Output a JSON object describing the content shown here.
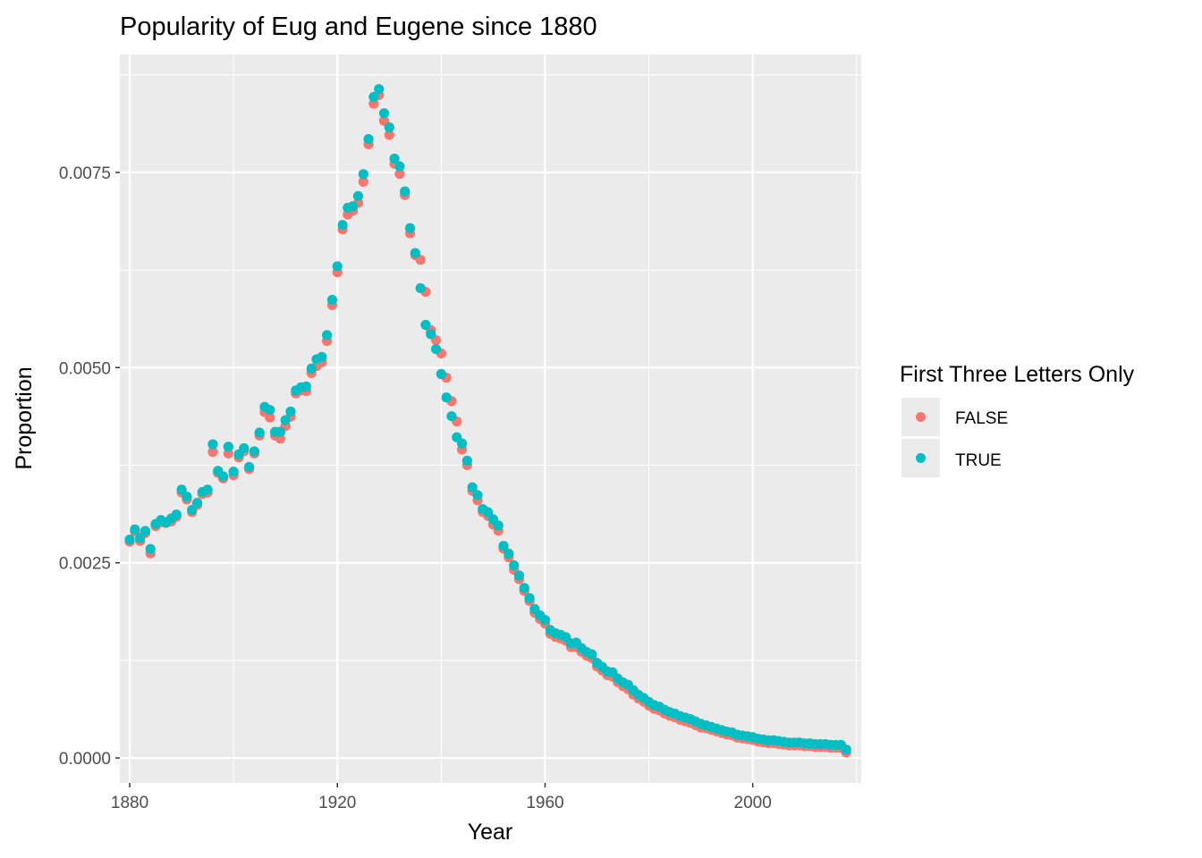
{
  "chart_data": {
    "type": "scatter",
    "title": "Popularity of Eug and Eugene since 1880",
    "xlabel": "Year",
    "ylabel": "Proportion",
    "xlim": [
      1878.1,
      2020.9
    ],
    "ylim": [
      -0.00032,
      0.00901
    ],
    "x_ticks": [
      1880,
      1920,
      1960,
      2000
    ],
    "x_tick_labels": [
      "1880",
      "1920",
      "1960",
      "2000"
    ],
    "x_minor": [
      1900,
      1940,
      1980,
      2020
    ],
    "y_ticks": [
      0,
      0.0025,
      0.005,
      0.0075
    ],
    "y_tick_labels": [
      "0.0000",
      "0.0025",
      "0.0050",
      "0.0075"
    ],
    "y_minor": [
      0.00125,
      0.00375,
      0.00625,
      0.00875
    ],
    "grid": true,
    "legend": {
      "title": "First Three Letters Only",
      "position": "right"
    },
    "x": [
      1880,
      1881,
      1882,
      1883,
      1884,
      1885,
      1886,
      1887,
      1888,
      1889,
      1890,
      1891,
      1892,
      1893,
      1894,
      1895,
      1896,
      1897,
      1898,
      1899,
      1900,
      1901,
      1902,
      1903,
      1904,
      1905,
      1906,
      1907,
      1908,
      1909,
      1910,
      1911,
      1912,
      1913,
      1914,
      1915,
      1916,
      1917,
      1918,
      1919,
      1920,
      1921,
      1922,
      1923,
      1924,
      1925,
      1926,
      1927,
      1928,
      1929,
      1930,
      1931,
      1932,
      1933,
      1934,
      1935,
      1936,
      1937,
      1938,
      1939,
      1940,
      1941,
      1942,
      1943,
      1944,
      1945,
      1946,
      1947,
      1948,
      1949,
      1950,
      1951,
      1952,
      1953,
      1954,
      1955,
      1956,
      1957,
      1958,
      1959,
      1960,
      1961,
      1962,
      1963,
      1964,
      1965,
      1966,
      1967,
      1968,
      1969,
      1970,
      1971,
      1972,
      1973,
      1974,
      1975,
      1976,
      1977,
      1978,
      1979,
      1980,
      1981,
      1982,
      1983,
      1984,
      1985,
      1986,
      1987,
      1988,
      1989,
      1990,
      1991,
      1992,
      1993,
      1994,
      1995,
      1996,
      1997,
      1998,
      1999,
      2000,
      2001,
      2002,
      2003,
      2004,
      2005,
      2006,
      2007,
      2008,
      2009,
      2010,
      2011,
      2012,
      2013,
      2014,
      2015,
      2016,
      2017,
      2018
    ],
    "series": [
      {
        "name": "FALSE",
        "color": "#F8766D",
        "values": [
          0.00277,
          0.0029,
          0.00278,
          0.00288,
          0.00262,
          0.00297,
          0.00302,
          0.00301,
          0.00303,
          0.00309,
          0.0034,
          0.00331,
          0.00315,
          0.00324,
          0.00338,
          0.0034,
          0.00392,
          0.00365,
          0.00358,
          0.0039,
          0.00362,
          0.00385,
          0.00393,
          0.0037,
          0.0039,
          0.00413,
          0.00443,
          0.00436,
          0.00413,
          0.00409,
          0.00425,
          0.00437,
          0.00467,
          0.00471,
          0.0047,
          0.00493,
          0.00502,
          0.00507,
          0.00534,
          0.0058,
          0.00622,
          0.00677,
          0.00696,
          0.00701,
          0.00711,
          0.00738,
          0.00786,
          0.00838,
          0.00849,
          0.00816,
          0.00798,
          0.00761,
          0.00748,
          0.00721,
          0.00672,
          0.00644,
          0.00638,
          0.00597,
          0.00548,
          0.00535,
          0.00518,
          0.00487,
          0.00457,
          0.00431,
          0.00395,
          0.00375,
          0.00342,
          0.0033,
          0.00315,
          0.0031,
          0.00299,
          0.00291,
          0.00268,
          0.00257,
          0.00241,
          0.00229,
          0.00214,
          0.00201,
          0.00186,
          0.00178,
          0.00172,
          0.00159,
          0.00155,
          0.00153,
          0.0015,
          0.00142,
          0.00142,
          0.00136,
          0.00131,
          0.00128,
          0.00117,
          0.00112,
          0.00106,
          0.00104,
          0.00097,
          0.00092,
          0.00088,
          0.00081,
          0.00076,
          0.00072,
          0.00067,
          0.00063,
          0.00061,
          0.00057,
          0.00054,
          0.00052,
          0.00049,
          0.00047,
          0.00045,
          0.00042,
          0.00039,
          0.00038,
          0.00036,
          0.00034,
          0.00032,
          0.0003,
          0.00029,
          0.00026,
          0.00025,
          0.00024,
          0.00023,
          0.00021,
          0.0002,
          0.00019,
          0.00019,
          0.00018,
          0.00017,
          0.00016,
          0.00016,
          0.00016,
          0.00015,
          0.00015,
          0.00014,
          0.00014,
          0.00014,
          0.00013,
          0.00013,
          0.00013,
          7e-05
        ]
      },
      {
        "name": "TRUE",
        "color": "#00BFC4",
        "values": [
          0.00278,
          0.00291,
          0.0028,
          0.00289,
          0.00266,
          0.00298,
          0.00303,
          0.003,
          0.00305,
          0.0031,
          0.00342,
          0.00333,
          0.00316,
          0.00325,
          0.00339,
          0.00342,
          0.004,
          0.00366,
          0.00359,
          0.00397,
          0.00365,
          0.00387,
          0.00395,
          0.00371,
          0.00391,
          0.00415,
          0.00448,
          0.00444,
          0.00416,
          0.00416,
          0.00431,
          0.00442,
          0.00469,
          0.00473,
          0.00474,
          0.00497,
          0.00509,
          0.00512,
          0.0054,
          0.00585,
          0.00628,
          0.00681,
          0.00703,
          0.00705,
          0.00718,
          0.00746,
          0.00791,
          0.00845,
          0.00855,
          0.00824,
          0.00806,
          0.00766,
          0.00756,
          0.00724,
          0.00677,
          0.00645,
          0.006,
          0.00553,
          0.00541,
          0.00522,
          0.0049,
          0.0046,
          0.00436,
          0.00409,
          0.00401,
          0.00379,
          0.00345,
          0.00335,
          0.00317,
          0.00313,
          0.00304,
          0.00296,
          0.0027,
          0.0026,
          0.00245,
          0.00232,
          0.00216,
          0.00203,
          0.00189,
          0.00181,
          0.00175,
          0.00162,
          0.00158,
          0.00156,
          0.00153,
          0.00145,
          0.00146,
          0.00139,
          0.00134,
          0.00131,
          0.0012,
          0.00115,
          0.00109,
          0.00108,
          0.001,
          0.00095,
          0.00092,
          0.00085,
          0.00079,
          0.00075,
          0.0007,
          0.00066,
          0.00064,
          0.0006,
          0.00057,
          0.00055,
          0.00052,
          0.0005,
          0.00048,
          0.00045,
          0.00042,
          0.0004,
          0.00038,
          0.00036,
          0.00034,
          0.00032,
          0.00031,
          0.00028,
          0.00027,
          0.00026,
          0.00025,
          0.00023,
          0.00022,
          0.00021,
          0.00021,
          0.0002,
          0.00019,
          0.00018,
          0.00018,
          0.00018,
          0.00017,
          0.00017,
          0.00016,
          0.00016,
          0.00016,
          0.00015,
          0.00015,
          0.00015,
          9e-05
        ]
      }
    ]
  }
}
